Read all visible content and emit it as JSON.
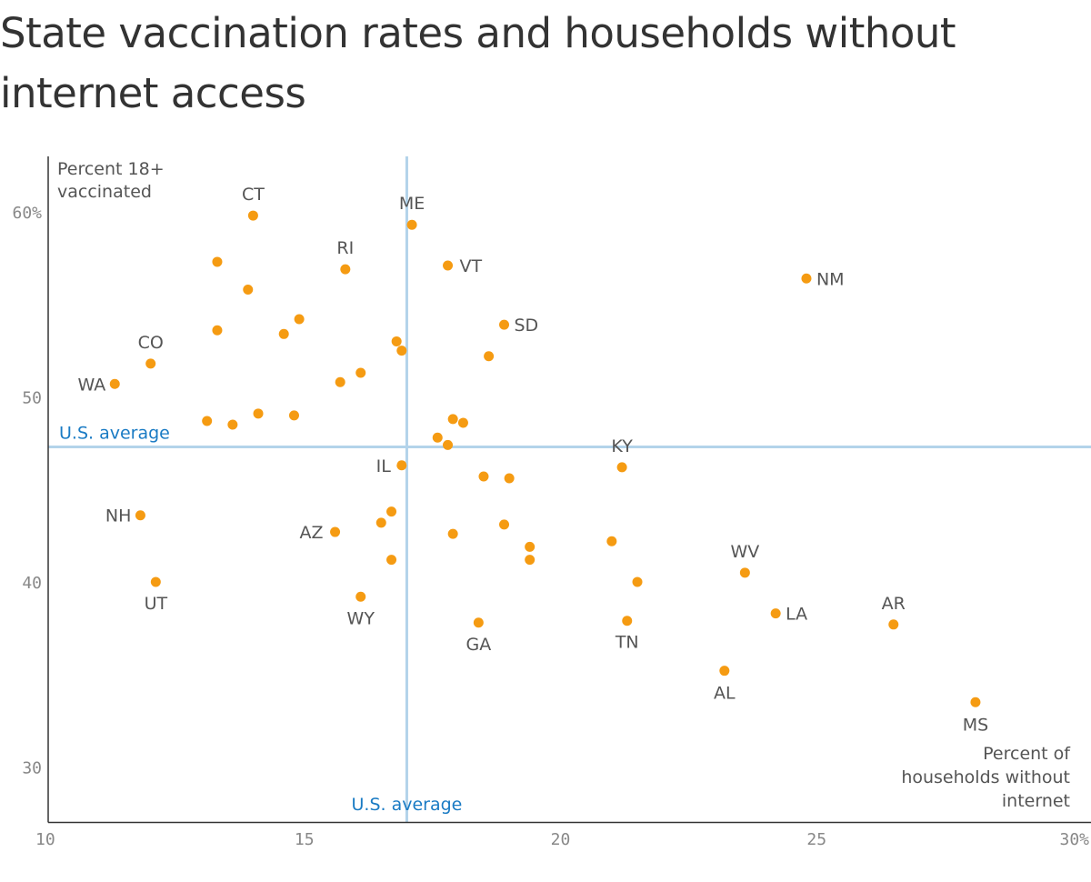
{
  "title": "State vaccination rates and households without internet access",
  "chart_data": {
    "type": "scatter",
    "title": "State vaccination rates and households without internet access",
    "xlabel": "Percent of households without internet",
    "ylabel": "Percent 18+ vaccinated",
    "xlim": [
      10,
      30
    ],
    "ylim": [
      27,
      63
    ],
    "x_ticks": [
      "10",
      "15",
      "20",
      "25",
      "30%"
    ],
    "y_ticks": [
      "60%",
      "50",
      "40",
      "30"
    ],
    "us_average": {
      "x": 17.0,
      "y": 47.3,
      "x_label": "U.S. average",
      "y_label": "U.S. average"
    },
    "colors": {
      "points": "#f59b12",
      "average_line": "#b3d3ea",
      "average_text": "#1a7bc4"
    },
    "points": [
      {
        "label": "CT",
        "x": 14.0,
        "y": 59.8
      },
      {
        "label": "ME",
        "x": 17.1,
        "y": 59.3
      },
      {
        "label": "RI",
        "x": 15.8,
        "y": 56.9
      },
      {
        "label": "VT",
        "x": 17.8,
        "y": 57.1
      },
      {
        "label": "NM",
        "x": 24.8,
        "y": 56.4
      },
      {
        "label": "SD",
        "x": 18.9,
        "y": 53.9
      },
      {
        "label": "CO",
        "x": 12.0,
        "y": 51.8
      },
      {
        "label": "WA",
        "x": 11.3,
        "y": 50.7
      },
      {
        "label": "KY",
        "x": 21.2,
        "y": 46.2
      },
      {
        "label": "IL",
        "x": 16.9,
        "y": 46.3
      },
      {
        "label": "NH",
        "x": 11.8,
        "y": 43.6
      },
      {
        "label": "AZ",
        "x": 15.6,
        "y": 42.7
      },
      {
        "label": "UT",
        "x": 12.1,
        "y": 40.0
      },
      {
        "label": "WY",
        "x": 16.1,
        "y": 39.2
      },
      {
        "label": "WV",
        "x": 23.6,
        "y": 40.5
      },
      {
        "label": "LA",
        "x": 24.2,
        "y": 38.3
      },
      {
        "label": "AR",
        "x": 26.5,
        "y": 37.7
      },
      {
        "label": "GA",
        "x": 18.4,
        "y": 37.8
      },
      {
        "label": "TN",
        "x": 21.3,
        "y": 37.9
      },
      {
        "label": "AL",
        "x": 23.2,
        "y": 35.2
      },
      {
        "label": "MS",
        "x": 28.1,
        "y": 33.5
      },
      {
        "label": "",
        "x": 13.3,
        "y": 57.3
      },
      {
        "label": "",
        "x": 13.9,
        "y": 55.8
      },
      {
        "label": "",
        "x": 13.3,
        "y": 53.6
      },
      {
        "label": "",
        "x": 14.6,
        "y": 53.4
      },
      {
        "label": "",
        "x": 14.9,
        "y": 54.2
      },
      {
        "label": "",
        "x": 16.8,
        "y": 53.0
      },
      {
        "label": "",
        "x": 16.9,
        "y": 52.5
      },
      {
        "label": "",
        "x": 18.6,
        "y": 52.2
      },
      {
        "label": "",
        "x": 16.1,
        "y": 51.3
      },
      {
        "label": "",
        "x": 15.7,
        "y": 50.8
      },
      {
        "label": "",
        "x": 13.1,
        "y": 48.7
      },
      {
        "label": "",
        "x": 13.6,
        "y": 48.5
      },
      {
        "label": "",
        "x": 14.1,
        "y": 49.1
      },
      {
        "label": "",
        "x": 14.8,
        "y": 49.0
      },
      {
        "label": "",
        "x": 17.9,
        "y": 48.8
      },
      {
        "label": "",
        "x": 18.1,
        "y": 48.6
      },
      {
        "label": "",
        "x": 17.6,
        "y": 47.8
      },
      {
        "label": "",
        "x": 17.8,
        "y": 47.4
      },
      {
        "label": "",
        "x": 18.5,
        "y": 45.7
      },
      {
        "label": "",
        "x": 19.0,
        "y": 45.6
      },
      {
        "label": "",
        "x": 16.7,
        "y": 43.8
      },
      {
        "label": "",
        "x": 16.5,
        "y": 43.2
      },
      {
        "label": "",
        "x": 18.9,
        "y": 43.1
      },
      {
        "label": "",
        "x": 17.9,
        "y": 42.6
      },
      {
        "label": "",
        "x": 21.0,
        "y": 42.2
      },
      {
        "label": "",
        "x": 19.4,
        "y": 41.9
      },
      {
        "label": "",
        "x": 19.4,
        "y": 41.2
      },
      {
        "label": "",
        "x": 16.7,
        "y": 41.2
      },
      {
        "label": "",
        "x": 21.5,
        "y": 40.0
      }
    ]
  }
}
